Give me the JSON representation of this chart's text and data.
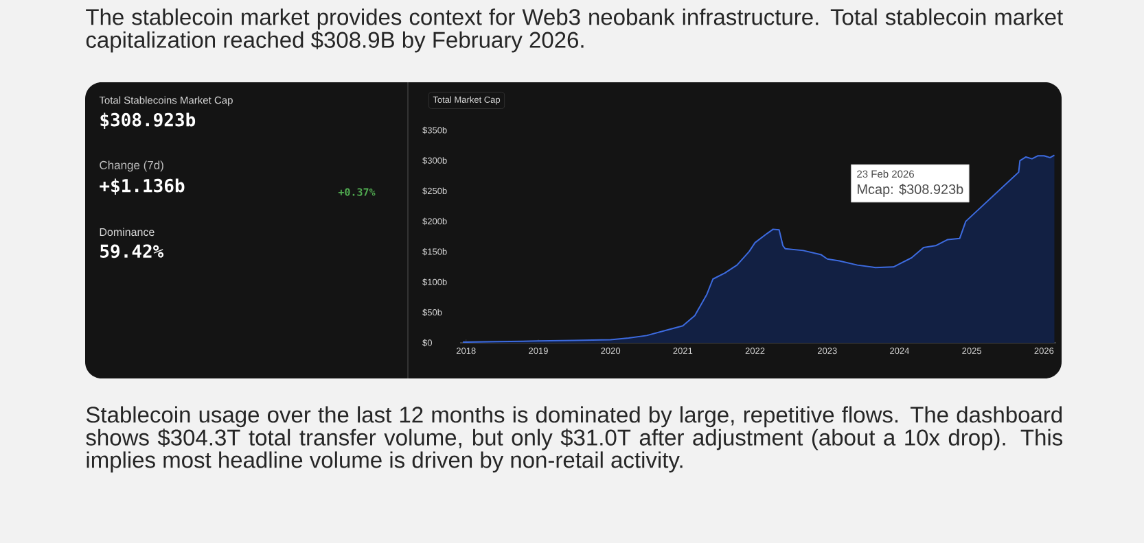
{
  "chart_data": {
    "type": "area",
    "title": "The stablecoin market provides context for Web3 neobank infrastructure. Total stablecoin market capitalization reached $308.9B by February 2026.",
    "x": [
      "2017-12-15",
      "2018-06",
      "2019-01",
      "2019-07",
      "2020-01",
      "2020-04",
      "2020-07",
      "2020-10",
      "2021-01",
      "2021-03",
      "2021-05",
      "2021-06",
      "2021-08",
      "2021-10",
      "2021-12",
      "2022-01",
      "2022-03",
      "2022-04",
      "2022-05",
      "2022-05-20",
      "2022-06",
      "2022-09",
      "2022-12",
      "2023-01",
      "2023-03",
      "2023-06",
      "2023-09",
      "2023-12",
      "2024-01",
      "2024-03",
      "2024-05",
      "2024-07",
      "2024-09",
      "2024-11",
      "2024-12",
      "2025-08-25",
      "2025-09",
      "2025-10",
      "2025-11",
      "2025-12",
      "2026-01",
      "2026-02",
      "2026-02-23"
    ],
    "series": [
      {
        "color": "#3d6be0",
        "values": [
          1,
          2,
          3,
          4,
          5,
          8,
          12,
          20,
          28,
          45,
          80,
          105,
          115,
          128,
          150,
          165,
          180,
          187,
          186,
          160,
          155,
          152,
          145,
          138,
          135,
          128,
          124,
          125,
          130,
          140,
          157,
          160,
          170,
          172,
          200,
          281,
          300,
          306,
          303,
          308,
          308,
          305,
          308.923
        ]
      }
    ],
    "xlim": [
      "2017-12-01",
      "2026-03-01"
    ],
    "xticks": [
      "2018",
      "2019",
      "2020",
      "2021",
      "2022",
      "2023",
      "2024",
      "2025",
      "2026"
    ],
    "ylim": [
      0,
      350
    ],
    "yticks": [
      {
        "value": 0,
        "label": "$0"
      },
      {
        "value": 50,
        "label": "$50b"
      },
      {
        "value": 100,
        "label": "$100b"
      },
      {
        "value": 150,
        "label": "$150b"
      },
      {
        "value": 200,
        "label": "$200b"
      },
      {
        "value": 250,
        "label": "$250b"
      },
      {
        "value": 300,
        "label": "$300b"
      },
      {
        "value": 350,
        "label": "$350b"
      }
    ],
    "grid": false,
    "annotations": [
      "Total Market Cap",
      "Total Stablecoins Market Cap",
      "$308.923b",
      "Change (7d)",
      "+$1.136b",
      "+0.37%",
      "Dominance",
      "59.42%",
      "23 Feb 2026",
      "Mcap: $308.923b",
      "Stablecoin usage over the last 12 months is dominated by large, repetitive flows. The dashboard shows $304.3T total transfer volume, but only $31.0T after adjustment (about a 10x drop). This implies most headline volume is driven by non-retail activity."
    ]
  }
}
